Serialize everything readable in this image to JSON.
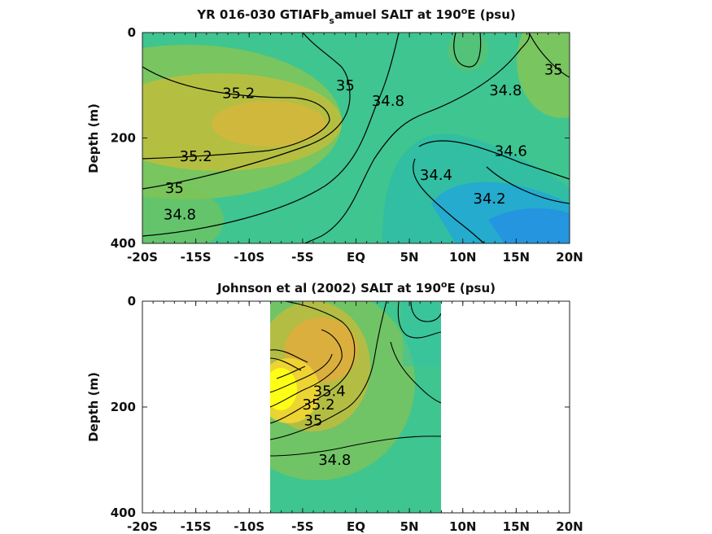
{
  "chart_data": [
    {
      "type": "heatmap",
      "title_main": "YR 016-030 GTIAFb",
      "title_sub": "s",
      "title_after": "amuel SALT at 190",
      "title_sup": "o",
      "title_end": "E (psu)",
      "ylabel": "Depth (m)",
      "xlim": [
        -20,
        20
      ],
      "ylim": [
        0,
        400
      ],
      "x_ticks": [
        -20,
        -15,
        -10,
        -5,
        0,
        5,
        10,
        15,
        20
      ],
      "x_tick_labels": [
        "-20S",
        "-15S",
        "-10S",
        "-5S",
        "EQ",
        "5N",
        "10N",
        "15N",
        "20N"
      ],
      "y_ticks": [
        0,
        200,
        400
      ],
      "y_tick_labels": [
        "0",
        "200",
        "400"
      ],
      "data_extent": [
        -20,
        20
      ],
      "contour_labels": [
        {
          "text": "35.2",
          "x": -11,
          "depth": 115
        },
        {
          "text": "35",
          "x": -1,
          "depth": 100
        },
        {
          "text": "34.8",
          "x": 3,
          "depth": 130
        },
        {
          "text": "35.2",
          "x": -15,
          "depth": 235
        },
        {
          "text": "35",
          "x": -17,
          "depth": 295
        },
        {
          "text": "34.8",
          "x": -16.5,
          "depth": 345
        },
        {
          "text": "34.8",
          "x": 14,
          "depth": 110
        },
        {
          "text": "35",
          "x": 18.5,
          "depth": 70
        },
        {
          "text": "34.6",
          "x": 14.5,
          "depth": 225
        },
        {
          "text": "34.4",
          "x": 7.5,
          "depth": 270
        },
        {
          "text": "34.2",
          "x": 12.5,
          "depth": 315
        }
      ]
    },
    {
      "type": "heatmap",
      "title_main": "Johnson et al (2002) SALT at 190",
      "title_sub": "",
      "title_after": "",
      "title_sup": "o",
      "title_end": "E (psu)",
      "ylabel": "Depth (m)",
      "xlim": [
        -20,
        20
      ],
      "ylim": [
        0,
        400
      ],
      "x_ticks": [
        -20,
        -15,
        -10,
        -5,
        0,
        5,
        10,
        15,
        20
      ],
      "x_tick_labels": [
        "-20S",
        "-15S",
        "-10S",
        "-5S",
        "EQ",
        "5N",
        "10N",
        "15N",
        "20N"
      ],
      "y_ticks": [
        0,
        200,
        400
      ],
      "y_tick_labels": [
        "0",
        "200",
        "400"
      ],
      "data_extent": [
        -8,
        8
      ],
      "contour_labels": [
        {
          "text": "34.8",
          "x": -2,
          "depth": 300
        },
        {
          "text": "35",
          "x": -4,
          "depth": 225
        },
        {
          "text": "35.2",
          "x": -3.5,
          "depth": 195
        },
        {
          "text": "35.4",
          "x": -2.5,
          "depth": 170
        }
      ]
    }
  ]
}
